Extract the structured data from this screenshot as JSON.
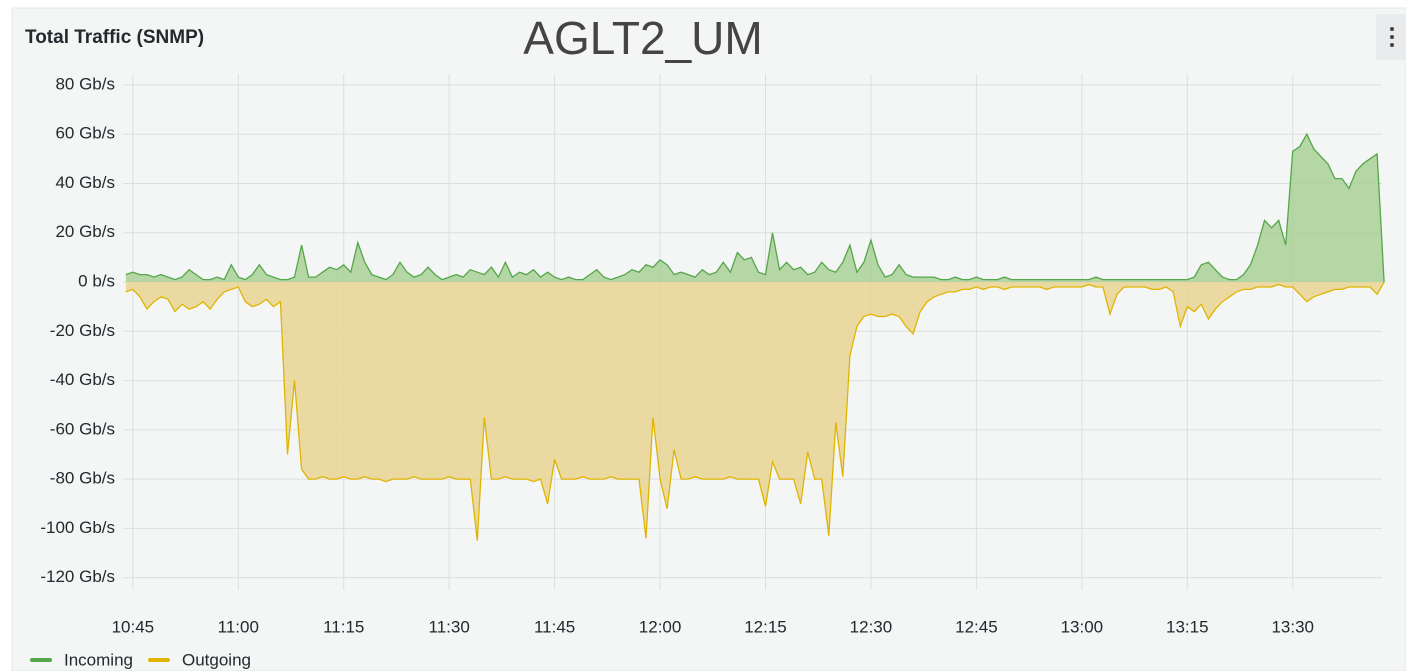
{
  "chart_data": {
    "type": "area",
    "title": "Total Traffic (SNMP)",
    "subtitle": "AGLT2_UM",
    "x": [
      644,
      645,
      646,
      647,
      648,
      649,
      650,
      651,
      652,
      653,
      654,
      655,
      656,
      657,
      658,
      659,
      660,
      661,
      662,
      663,
      664,
      665,
      666,
      667,
      668,
      669,
      670,
      671,
      672,
      673,
      674,
      675,
      676,
      677,
      678,
      679,
      680,
      681,
      682,
      683,
      684,
      685,
      686,
      687,
      688,
      689,
      690,
      691,
      692,
      693,
      694,
      695,
      696,
      697,
      698,
      699,
      700,
      701,
      702,
      703,
      704,
      705,
      706,
      707,
      708,
      709,
      710,
      711,
      712,
      713,
      714,
      715,
      716,
      717,
      718,
      719,
      720,
      721,
      722,
      723,
      724,
      725,
      726,
      727,
      728,
      729,
      730,
      731,
      732,
      733,
      734,
      735,
      736,
      737,
      738,
      739,
      740,
      741,
      742,
      743,
      744,
      745,
      746,
      747,
      748,
      749,
      750,
      751,
      752,
      753,
      754,
      755,
      756,
      757,
      758,
      759,
      760,
      761,
      762,
      763,
      764,
      765,
      766,
      767,
      768,
      769,
      770,
      771,
      772,
      773,
      774,
      775,
      776,
      777,
      778,
      779,
      780,
      781,
      782,
      783,
      784,
      785,
      786,
      787,
      788,
      789,
      790,
      791,
      792,
      793,
      794,
      795,
      796,
      797,
      798,
      799,
      800,
      801,
      802,
      803,
      804,
      805,
      806,
      807,
      808,
      809,
      810,
      811,
      812,
      813,
      814,
      815,
      816,
      817,
      818,
      819,
      820,
      821,
      822,
      823
    ],
    "series": [
      {
        "name": "Incoming",
        "color": "#56a64b",
        "fill": "#a9d096",
        "values": [
          3,
          4,
          3,
          3,
          2,
          3,
          2,
          1,
          2,
          5,
          3,
          1,
          1,
          2,
          1,
          7,
          2,
          1,
          3,
          7,
          3,
          2,
          1,
          1,
          2,
          15,
          2,
          2,
          4,
          6,
          5,
          7,
          4,
          16,
          8,
          3,
          2,
          1,
          3,
          8,
          4,
          2,
          3,
          6,
          3,
          1,
          2,
          3,
          2,
          5,
          4,
          3,
          6,
          2,
          8,
          2,
          4,
          3,
          5,
          2,
          4,
          2,
          1,
          2,
          1,
          1,
          3,
          5,
          2,
          1,
          2,
          3,
          5,
          4,
          7,
          6,
          9,
          7,
          3,
          4,
          3,
          2,
          5,
          3,
          4,
          8,
          4,
          12,
          9,
          10,
          4,
          3,
          20,
          5,
          8,
          5,
          6,
          3,
          4,
          8,
          5,
          4,
          8,
          15,
          4,
          8,
          17,
          7,
          2,
          3,
          7,
          3,
          2,
          2,
          2,
          2,
          1,
          1,
          2,
          1,
          1,
          2,
          1,
          1,
          1,
          2,
          1,
          1,
          1,
          1,
          1,
          1,
          1,
          1,
          1,
          1,
          1,
          1,
          2,
          1,
          1,
          1,
          1,
          1,
          1,
          1,
          1,
          1,
          1,
          1,
          1,
          1,
          2,
          7,
          8,
          5,
          2,
          1,
          1,
          3,
          7,
          15,
          25,
          22,
          25,
          15,
          53,
          55,
          60,
          54,
          51,
          48,
          42,
          42,
          38,
          45,
          48,
          50,
          52,
          0
        ]
      },
      {
        "name": "Outgoing",
        "color": "#e0b400",
        "fill": "#e8d592",
        "values": [
          -4,
          -3,
          -6,
          -11,
          -8,
          -6,
          -7,
          -12,
          -9,
          -11,
          -10,
          -8,
          -11,
          -7,
          -4,
          -3,
          -2,
          -8,
          -10,
          -9,
          -7,
          -10,
          -8,
          -70,
          -40,
          -76,
          -80,
          -80,
          -79,
          -80,
          -80,
          -79,
          -80,
          -80,
          -79,
          -80,
          -80,
          -81,
          -80,
          -80,
          -80,
          -79,
          -80,
          -80,
          -80,
          -80,
          -79,
          -80,
          -80,
          -80,
          -105,
          -55,
          -80,
          -80,
          -79,
          -80,
          -80,
          -80,
          -81,
          -80,
          -90,
          -72,
          -80,
          -80,
          -80,
          -79,
          -80,
          -80,
          -80,
          -79,
          -80,
          -80,
          -80,
          -80,
          -104,
          -55,
          -80,
          -92,
          -68,
          -80,
          -80,
          -79,
          -80,
          -80,
          -80,
          -80,
          -79,
          -80,
          -80,
          -80,
          -80,
          -91,
          -73,
          -80,
          -80,
          -80,
          -90,
          -69,
          -80,
          -80,
          -103,
          -57,
          -79,
          -30,
          -18,
          -14,
          -13,
          -14,
          -14,
          -13,
          -14,
          -18,
          -21,
          -12,
          -8,
          -6,
          -5,
          -4,
          -4,
          -3,
          -3,
          -2,
          -3,
          -2,
          -2,
          -3,
          -2,
          -2,
          -2,
          -2,
          -2,
          -3,
          -2,
          -2,
          -2,
          -2,
          -2,
          -1,
          -2,
          -2,
          -13,
          -5,
          -2,
          -2,
          -2,
          -2,
          -3,
          -3,
          -2,
          -4,
          -18,
          -10,
          -12,
          -9,
          -15,
          -11,
          -8,
          -6,
          -4,
          -3,
          -3,
          -2,
          -2,
          -2,
          -1,
          -2,
          -2,
          -5,
          -8,
          -6,
          -5,
          -4,
          -3,
          -3,
          -2,
          -2,
          -2,
          -2,
          -5,
          0
        ]
      }
    ],
    "xlim": [
      643.6,
      822.7
    ],
    "xticks": [
      {
        "value": 645,
        "label": "10:45"
      },
      {
        "value": 660,
        "label": "11:00"
      },
      {
        "value": 675,
        "label": "11:15"
      },
      {
        "value": 690,
        "label": "11:30"
      },
      {
        "value": 705,
        "label": "11:45"
      },
      {
        "value": 720,
        "label": "12:00"
      },
      {
        "value": 735,
        "label": "12:15"
      },
      {
        "value": 750,
        "label": "12:30"
      },
      {
        "value": 765,
        "label": "12:45"
      },
      {
        "value": 780,
        "label": "13:00"
      },
      {
        "value": 795,
        "label": "13:15"
      },
      {
        "value": 810,
        "label": "13:30"
      }
    ],
    "ylim": [
      -125,
      82
    ],
    "yticks": [
      {
        "value": 80,
        "label": "80 Gb/s"
      },
      {
        "value": 60,
        "label": "60 Gb/s"
      },
      {
        "value": 40,
        "label": "40 Gb/s"
      },
      {
        "value": 20,
        "label": "20 Gb/s"
      },
      {
        "value": 0,
        "label": "0 b/s"
      },
      {
        "value": -20,
        "label": "-20 Gb/s"
      },
      {
        "value": -40,
        "label": "-40 Gb/s"
      },
      {
        "value": -60,
        "label": "-60 Gb/s"
      },
      {
        "value": -80,
        "label": "-80 Gb/s"
      },
      {
        "value": -100,
        "label": "-100 Gb/s"
      },
      {
        "value": -120,
        "label": "-120 Gb/s"
      }
    ],
    "grid": true,
    "legend": "bottom"
  }
}
